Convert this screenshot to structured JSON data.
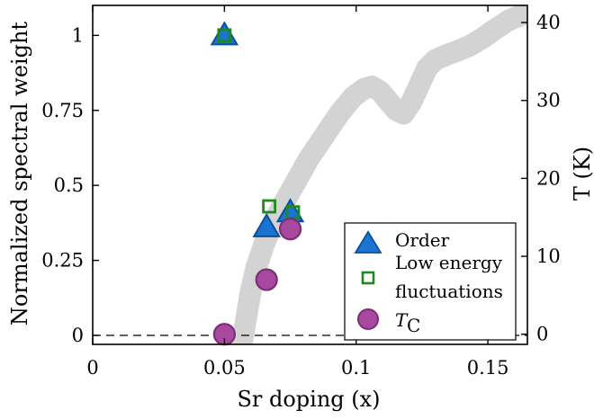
{
  "chart_data": {
    "type": "scatter",
    "xlabel": "Sr doping (x)",
    "ylabel": "Normalized spectral weight",
    "ylabel_right": "T (K)",
    "xlim": [
      0,
      0.165
    ],
    "ylim": [
      -0.03,
      1.1
    ],
    "ylim_right": [
      -1.3,
      42.2
    ],
    "xticks": [
      0,
      0.05,
      0.1,
      0.15
    ],
    "xtick_labels": [
      "0",
      "0.05",
      "0.1",
      "0.15"
    ],
    "yticks": [
      0,
      0.25,
      0.5,
      0.75,
      1
    ],
    "ytick_labels": [
      "0",
      "0.25",
      "0.5",
      "0.75",
      "1"
    ],
    "yticks_right": [
      0,
      10,
      20,
      30,
      40
    ],
    "ytick_labels_right": [
      "0",
      "10",
      "20",
      "30",
      "40"
    ],
    "reference_line": {
      "y": 0,
      "style": "dashed"
    },
    "background_curve": {
      "axis": "right",
      "color": "#d3d3d3",
      "x": [
        0.0565,
        0.058,
        0.06,
        0.062,
        0.065,
        0.068,
        0.072,
        0.077,
        0.082,
        0.088,
        0.094,
        0.099,
        0.103,
        0.106,
        0.109,
        0.112,
        0.115,
        0.118,
        0.121,
        0.124,
        0.127,
        0.13,
        0.134,
        0.138,
        0.143,
        0.148,
        0.153,
        0.158,
        0.163
      ],
      "y": [
        -1.3,
        1.5,
        5.5,
        8.5,
        11.5,
        14,
        16.5,
        19.5,
        22.5,
        25.5,
        28.5,
        30.5,
        31.5,
        31.8,
        31.2,
        30,
        28.8,
        28.3,
        29.8,
        32,
        34.2,
        35.2,
        35.8,
        36.3,
        37,
        38,
        39.2,
        40.3,
        41
      ]
    },
    "series": [
      {
        "name": "Order",
        "marker": "triangle",
        "color": "#1a75d2",
        "edge": "#0b4f9c",
        "x": [
          0.05,
          0.066,
          0.075
        ],
        "y": [
          1.0,
          0.36,
          0.41
        ]
      },
      {
        "name": "Low energy fluctuations",
        "marker": "square-open",
        "color": "#1e8a1e",
        "x": [
          0.05,
          0.067,
          0.076
        ],
        "y": [
          1.0,
          0.43,
          0.41
        ]
      },
      {
        "name": "T_C",
        "marker": "circle",
        "color": "#a8489e",
        "edge": "#7b2f74",
        "axis": "right",
        "x": [
          0.05,
          0.066,
          0.075
        ],
        "y": [
          0,
          7,
          13.5
        ]
      }
    ],
    "legend": {
      "placement": "bottom-right",
      "entries": [
        "Order",
        "Low energy",
        "fluctuations",
        "T",
        "C"
      ]
    }
  }
}
